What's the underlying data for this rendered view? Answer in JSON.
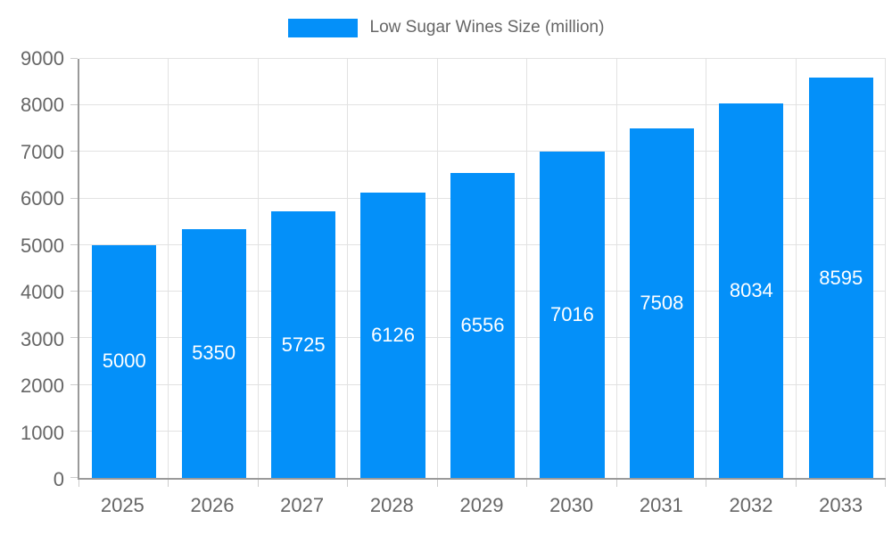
{
  "chart_data": {
    "type": "bar",
    "legend": "Low Sugar Wines Size (million)",
    "legend_position": "top",
    "categories": [
      "2025",
      "2026",
      "2027",
      "2028",
      "2029",
      "2030",
      "2031",
      "2032",
      "2033"
    ],
    "values": [
      5000,
      5350,
      5725,
      6126,
      6556,
      7016,
      7508,
      8034,
      8595
    ],
    "yticks": [
      0,
      1000,
      2000,
      3000,
      4000,
      5000,
      6000,
      7000,
      8000,
      9000
    ],
    "ylim": [
      0,
      9000
    ],
    "grid": true,
    "bar_color": "#0490f9",
    "bar_value_color": "#ffffff",
    "axis_text_color": "#666666",
    "gridline_color": "#e2e2e2",
    "axis_line_color": "#9a9a9a"
  }
}
